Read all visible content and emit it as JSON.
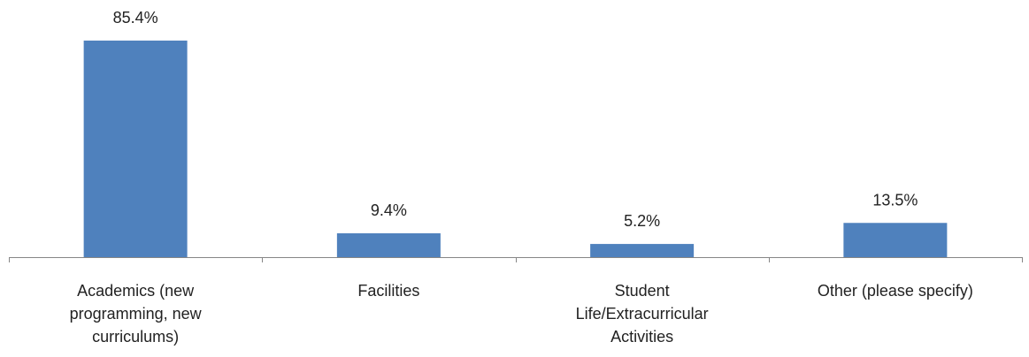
{
  "chart_data": {
    "type": "bar",
    "categories": [
      "Academics (new programming, new curriculums)",
      "Facilities",
      "Student Life/Extracurricular Activities",
      "Other (please specify)"
    ],
    "values": [
      85.4,
      9.4,
      5.2,
      13.5
    ],
    "value_labels": [
      "85.4%",
      "9.4%",
      "5.2%",
      "13.5%"
    ],
    "color": "#4f81bd",
    "ylim": [
      0,
      100
    ]
  }
}
